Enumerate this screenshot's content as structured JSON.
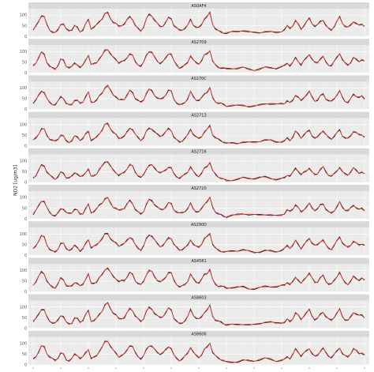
{
  "chart_data": {
    "type": "line",
    "ylabel": "NO2 [ug/m3]",
    "xlabel": "",
    "yticks": [
      0,
      50,
      100
    ],
    "ylim": [
      0,
      130
    ],
    "xticks": [
      "2019-11-05",
      "2019-11-06",
      "2019-11-07",
      "2019-11-08",
      "2019-11-09",
      "2019-11-10",
      "2019-11-11",
      "2019-11-12",
      "2019-11-13",
      "2019-11-14",
      "2019-11-15",
      "2019-11-16",
      "2019-11-17"
    ],
    "grid": true,
    "series_colors": {
      "observed": "#111111",
      "predicted": "#e8372b"
    },
    "panels": [
      {
        "label": "AS0AF4"
      },
      {
        "label": "AS2709"
      },
      {
        "label": "AS270C"
      },
      {
        "label": "AS2713"
      },
      {
        "label": "AS2716"
      },
      {
        "label": "AS2720"
      },
      {
        "label": "AS290D"
      },
      {
        "label": "AS4581"
      },
      {
        "label": "AS8603"
      },
      {
        "label": "AS8606"
      }
    ],
    "profile": {
      "x_days": [
        0.0,
        0.1,
        0.2,
        0.3,
        0.4,
        0.5,
        0.6,
        0.7,
        0.8,
        0.9,
        1.0,
        1.1,
        1.2,
        1.3,
        1.4,
        1.5,
        1.6,
        1.7,
        1.8,
        1.9,
        2.0,
        2.1,
        2.2,
        2.3,
        2.4,
        2.5,
        2.6,
        2.7,
        2.8,
        2.9,
        3.0,
        3.1,
        3.2,
        3.3,
        3.4,
        3.5,
        3.6,
        3.7,
        3.8,
        3.9,
        4.0,
        4.1,
        4.2,
        4.3,
        4.4,
        4.5,
        4.6,
        4.7,
        4.8,
        4.9,
        5.0,
        5.1,
        5.2,
        5.3,
        5.4,
        5.5,
        5.6,
        5.7,
        5.8,
        5.9,
        6.0,
        6.1,
        6.2,
        6.3,
        6.4,
        6.5,
        6.6,
        6.7,
        6.8,
        6.9,
        7.0,
        7.2,
        7.4,
        7.6,
        7.8,
        8.0,
        8.2,
        8.4,
        8.6,
        8.8,
        9.0,
        9.1,
        9.2,
        9.3,
        9.4,
        9.5,
        9.6,
        9.7,
        9.8,
        9.9,
        10.0,
        10.1,
        10.2,
        10.3,
        10.4,
        10.5,
        10.6,
        10.7,
        10.8,
        10.9,
        11.0,
        11.1,
        11.2,
        11.3,
        11.4,
        11.5,
        11.6,
        11.7,
        11.8,
        11.9,
        12.0
      ],
      "values": [
        30,
        45,
        70,
        95,
        90,
        55,
        35,
        25,
        20,
        35,
        60,
        55,
        30,
        25,
        30,
        50,
        45,
        28,
        35,
        60,
        80,
        35,
        40,
        50,
        70,
        85,
        110,
        115,
        90,
        70,
        60,
        45,
        50,
        55,
        75,
        95,
        85,
        55,
        40,
        30,
        45,
        80,
        100,
        95,
        75,
        60,
        50,
        55,
        70,
        90,
        85,
        50,
        35,
        25,
        30,
        40,
        55,
        85,
        60,
        45,
        40,
        55,
        80,
        90,
        110,
        60,
        40,
        30,
        25,
        20,
        15,
        18,
        20,
        25,
        20,
        18,
        22,
        28,
        25,
        20,
        25,
        30,
        45,
        35,
        50,
        75,
        60,
        40,
        55,
        70,
        85,
        60,
        45,
        50,
        70,
        80,
        55,
        40,
        35,
        50,
        70,
        90,
        60,
        45,
        40,
        55,
        75,
        65,
        55,
        60,
        50
      ]
    }
  }
}
